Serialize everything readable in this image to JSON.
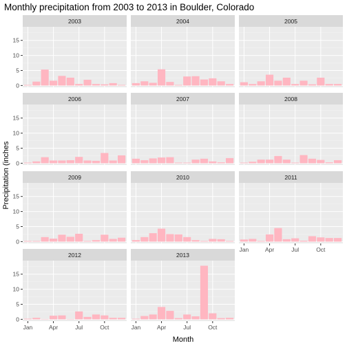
{
  "chart_data": {
    "type": "bar",
    "title": "Monthly precipitation from 2003 to 2013 in Boulder, Colorado",
    "xlabel": "Month",
    "ylabel": "Precipitation (inches",
    "ylim": [
      -0.6,
      19.5
    ],
    "yticks": [
      0,
      5,
      10,
      15
    ],
    "xticks": [
      {
        "month": 1,
        "label": "Jan"
      },
      {
        "month": 4,
        "label": "Apr"
      },
      {
        "month": 7,
        "label": "Jul"
      },
      {
        "month": 10,
        "label": "Oct"
      }
    ],
    "bar_color": "#FFB6C1",
    "panel_background": "#EBEBEB",
    "strip_background": "#D9D9D9",
    "grid": true,
    "facets": [
      {
        "year": "2003",
        "values": [
          0.2,
          1.3,
          5.3,
          1.6,
          3.2,
          2.6,
          0.5,
          1.9,
          0.5,
          0.4,
          0.8,
          0.2
        ]
      },
      {
        "year": "2004",
        "values": [
          0.8,
          1.4,
          0.9,
          5.4,
          1.2,
          0.2,
          3.0,
          3.1,
          2.0,
          2.4,
          1.4,
          0.5
        ]
      },
      {
        "year": "2005",
        "values": [
          1.1,
          0.5,
          1.4,
          3.6,
          1.6,
          2.6,
          0.5,
          1.6,
          0.4,
          2.6,
          0.5,
          0.5
        ]
      },
      {
        "year": "2006",
        "values": [
          0.2,
          0.6,
          2.0,
          0.9,
          0.9,
          1.0,
          2.1,
          0.9,
          0.8,
          3.4,
          0.9,
          2.6
        ]
      },
      {
        "year": "2007",
        "values": [
          1.5,
          1.0,
          1.6,
          1.9,
          2.0,
          0.2,
          0.2,
          1.2,
          1.5,
          0.6,
          0.3,
          1.7
        ]
      },
      {
        "year": "2008",
        "values": [
          0.2,
          0.5,
          1.2,
          1.2,
          2.4,
          1.2,
          0.2,
          2.7,
          1.5,
          1.1,
          0.3,
          1.0
        ]
      },
      {
        "year": "2009",
        "values": [
          0.2,
          0.2,
          1.5,
          1.0,
          2.3,
          1.6,
          2.6,
          0.2,
          0.5,
          2.3,
          0.9,
          1.3
        ]
      },
      {
        "year": "2010",
        "values": [
          0.5,
          1.5,
          2.8,
          4.3,
          2.5,
          2.4,
          1.5,
          0.5,
          0.2,
          0.9,
          0.8,
          0.2
        ]
      },
      {
        "year": "2011",
        "values": [
          0.7,
          0.9,
          0.2,
          2.4,
          4.5,
          0.8,
          1.1,
          0.3,
          1.8,
          1.4,
          1.2,
          1.2
        ]
      },
      {
        "year": "2012",
        "values": [
          0.2,
          0.5,
          0.1,
          1.2,
          1.3,
          0.1,
          2.6,
          0.8,
          1.6,
          1.3,
          0.5,
          0.5
        ]
      },
      {
        "year": "2013",
        "values": [
          0.2,
          1.1,
          1.6,
          4.1,
          2.8,
          0.4,
          1.6,
          1.0,
          17.8,
          2.0,
          0.4,
          0.5
        ]
      }
    ]
  }
}
